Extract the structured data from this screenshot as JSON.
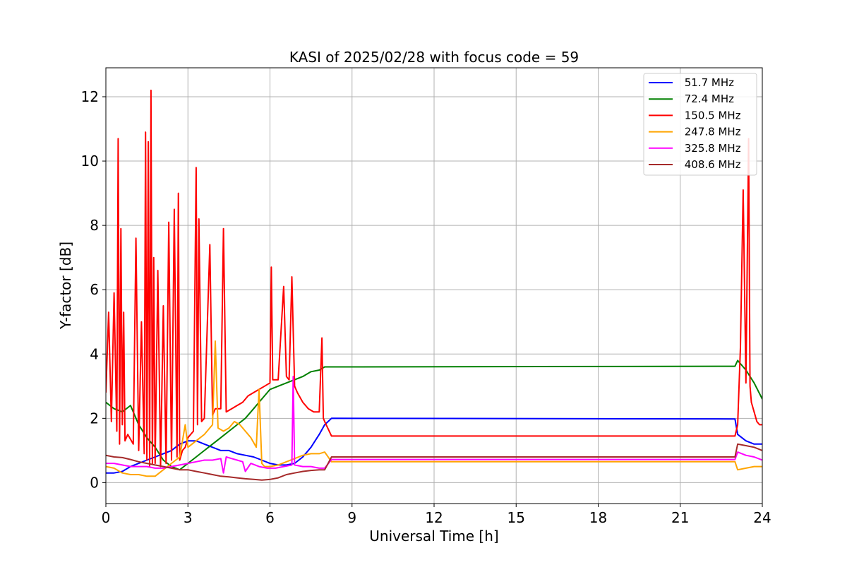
{
  "chart_data": {
    "type": "line",
    "title": "KASI of 2025/02/28 with focus code = 59",
    "xlabel": "Universal Time [h]",
    "ylabel": "Y-factor [dB]",
    "xlim": [
      0,
      24
    ],
    "ylim": [
      -0.65,
      12.9
    ],
    "xticks": [
      0,
      3,
      6,
      9,
      12,
      15,
      18,
      21,
      24
    ],
    "yticks": [
      0,
      2,
      4,
      6,
      8,
      10,
      12
    ],
    "grid": true,
    "legend_position": "top-right",
    "series": [
      {
        "name": " 51.7 MHz",
        "color": "#0000ff",
        "x": [
          0,
          0.3,
          0.6,
          0.9,
          1.2,
          1.5,
          1.8,
          2.1,
          2.4,
          2.7,
          3.0,
          3.3,
          3.6,
          3.9,
          4.2,
          4.5,
          4.8,
          5.1,
          5.4,
          5.7,
          6.0,
          6.3,
          6.6,
          6.9,
          7.2,
          7.5,
          7.8,
          8.0,
          8.25,
          23.0,
          23.1,
          23.4,
          23.7,
          24.0
        ],
        "y": [
          0.3,
          0.3,
          0.35,
          0.5,
          0.6,
          0.7,
          0.8,
          0.9,
          1.0,
          1.2,
          1.3,
          1.3,
          1.2,
          1.1,
          1.0,
          1.0,
          0.9,
          0.85,
          0.8,
          0.7,
          0.6,
          0.55,
          0.55,
          0.6,
          0.8,
          1.1,
          1.5,
          1.8,
          2.0,
          1.98,
          1.5,
          1.3,
          1.2,
          1.2
        ]
      },
      {
        "name": " 72.4 MHz",
        "color": "#008000",
        "x": [
          0,
          0.3,
          0.6,
          0.9,
          1.2,
          1.5,
          1.8,
          2.1,
          2.4,
          2.7,
          3.0,
          3.3,
          3.6,
          3.9,
          4.2,
          4.5,
          4.8,
          5.1,
          5.4,
          5.7,
          6.0,
          6.3,
          6.6,
          6.9,
          7.2,
          7.5,
          7.8,
          8.0,
          8.25,
          23.0,
          23.1,
          23.4,
          23.7,
          24.0
        ],
        "y": [
          2.5,
          2.3,
          2.2,
          2.4,
          1.8,
          1.4,
          1.1,
          0.7,
          0.5,
          0.4,
          0.6,
          0.8,
          1.0,
          1.2,
          1.4,
          1.6,
          1.8,
          2.0,
          2.3,
          2.6,
          2.9,
          3.0,
          3.1,
          3.2,
          3.3,
          3.45,
          3.5,
          3.6,
          3.6,
          3.62,
          3.8,
          3.5,
          3.1,
          2.6
        ]
      },
      {
        "name": " 150.5 MHz",
        "color": "#ff0000",
        "x": [
          0,
          0.1,
          0.2,
          0.3,
          0.4,
          0.45,
          0.5,
          0.55,
          0.6,
          0.65,
          0.7,
          0.8,
          1.0,
          1.1,
          1.2,
          1.3,
          1.4,
          1.45,
          1.5,
          1.55,
          1.6,
          1.65,
          1.7,
          1.75,
          1.8,
          1.9,
          2.0,
          2.1,
          2.2,
          2.3,
          2.4,
          2.5,
          2.6,
          2.65,
          2.7,
          2.8,
          2.9,
          3.0,
          3.2,
          3.3,
          3.35,
          3.4,
          3.5,
          3.6,
          3.8,
          3.9,
          4.0,
          4.2,
          4.3,
          4.4,
          4.6,
          4.8,
          5.0,
          5.2,
          5.4,
          5.6,
          5.8,
          6.0,
          6.05,
          6.1,
          6.3,
          6.5,
          6.6,
          6.7,
          6.8,
          6.9,
          7.0,
          7.2,
          7.4,
          7.6,
          7.8,
          7.9,
          7.95,
          8.0,
          8.25,
          23.0,
          23.1,
          23.2,
          23.3,
          23.4,
          23.5,
          23.55,
          23.6,
          23.7,
          23.8,
          23.9,
          24.0
        ],
        "y": [
          2.8,
          5.3,
          1.9,
          5.9,
          1.6,
          10.7,
          1.2,
          7.9,
          1.8,
          5.3,
          1.3,
          1.5,
          1.2,
          7.6,
          1.0,
          5.0,
          0.9,
          10.9,
          0.7,
          10.6,
          0.5,
          12.2,
          0.6,
          7.0,
          0.6,
          6.6,
          0.5,
          5.5,
          0.6,
          8.1,
          0.7,
          8.5,
          0.8,
          9.0,
          0.7,
          1.0,
          1.1,
          1.4,
          1.6,
          9.8,
          1.8,
          8.2,
          1.9,
          2.0,
          7.4,
          2.1,
          2.3,
          2.3,
          7.9,
          2.2,
          2.3,
          2.4,
          2.5,
          2.7,
          2.8,
          2.9,
          3.0,
          3.1,
          6.7,
          3.2,
          3.2,
          6.1,
          3.3,
          3.2,
          6.4,
          3.0,
          2.8,
          2.5,
          2.3,
          2.2,
          2.2,
          4.5,
          2.0,
          1.9,
          1.45,
          1.45,
          1.8,
          4.2,
          9.1,
          3.1,
          10.7,
          3.0,
          2.5,
          2.2,
          1.9,
          1.8,
          1.8
        ]
      },
      {
        "name": " 247.8 MHz",
        "color": "#ffa500",
        "x": [
          0,
          0.3,
          0.6,
          0.9,
          1.2,
          1.5,
          1.8,
          2.1,
          2.4,
          2.7,
          2.9,
          3.0,
          3.3,
          3.6,
          3.9,
          4.0,
          4.1,
          4.3,
          4.5,
          4.7,
          4.9,
          5.1,
          5.3,
          5.5,
          5.6,
          5.7,
          5.8,
          6.0,
          6.3,
          6.6,
          6.9,
          7.2,
          7.5,
          7.8,
          8.0,
          8.25,
          23.0,
          23.1,
          23.4,
          23.7,
          24.0
        ],
        "y": [
          0.5,
          0.45,
          0.3,
          0.25,
          0.25,
          0.2,
          0.2,
          0.4,
          0.6,
          0.8,
          1.8,
          1.1,
          1.3,
          1.5,
          1.8,
          4.4,
          1.7,
          1.6,
          1.7,
          1.9,
          1.8,
          1.6,
          1.4,
          1.1,
          2.9,
          0.6,
          0.5,
          0.5,
          0.55,
          0.65,
          0.75,
          0.85,
          0.9,
          0.9,
          0.95,
          0.65,
          0.65,
          0.4,
          0.45,
          0.5,
          0.5
        ]
      },
      {
        "name": " 325.8 MHz",
        "color": "#ff00ff",
        "x": [
          0,
          0.3,
          0.6,
          0.9,
          1.2,
          1.5,
          1.8,
          2.1,
          2.4,
          2.7,
          3.0,
          3.3,
          3.6,
          3.9,
          4.2,
          4.3,
          4.4,
          4.6,
          4.8,
          5.0,
          5.1,
          5.3,
          5.6,
          5.9,
          6.2,
          6.5,
          6.8,
          6.85,
          6.9,
          7.2,
          7.5,
          7.8,
          8.0,
          8.25,
          23.0,
          23.1,
          23.4,
          23.7,
          24.0
        ],
        "y": [
          0.6,
          0.6,
          0.55,
          0.5,
          0.5,
          0.5,
          0.45,
          0.45,
          0.5,
          0.55,
          0.6,
          0.65,
          0.7,
          0.7,
          0.75,
          0.3,
          0.8,
          0.75,
          0.7,
          0.65,
          0.35,
          0.6,
          0.5,
          0.45,
          0.45,
          0.5,
          0.55,
          3.3,
          0.55,
          0.5,
          0.5,
          0.45,
          0.45,
          0.72,
          0.72,
          0.95,
          0.85,
          0.8,
          0.7
        ]
      },
      {
        "name": " 408.6 MHz",
        "color": "#a52a2a",
        "x": [
          0,
          0.3,
          0.6,
          0.9,
          1.2,
          1.5,
          1.8,
          2.1,
          2.4,
          2.7,
          3.0,
          3.3,
          3.6,
          3.9,
          4.2,
          4.5,
          4.8,
          5.1,
          5.4,
          5.7,
          6.0,
          6.3,
          6.6,
          6.9,
          7.2,
          7.5,
          7.8,
          8.0,
          8.25,
          23.0,
          23.1,
          23.4,
          23.7,
          24.0
        ],
        "y": [
          0.85,
          0.8,
          0.78,
          0.72,
          0.65,
          0.6,
          0.55,
          0.5,
          0.45,
          0.4,
          0.4,
          0.35,
          0.3,
          0.25,
          0.2,
          0.18,
          0.15,
          0.12,
          0.1,
          0.08,
          0.1,
          0.15,
          0.25,
          0.3,
          0.35,
          0.38,
          0.4,
          0.4,
          0.8,
          0.8,
          1.2,
          1.15,
          1.1,
          1.0
        ]
      }
    ]
  }
}
